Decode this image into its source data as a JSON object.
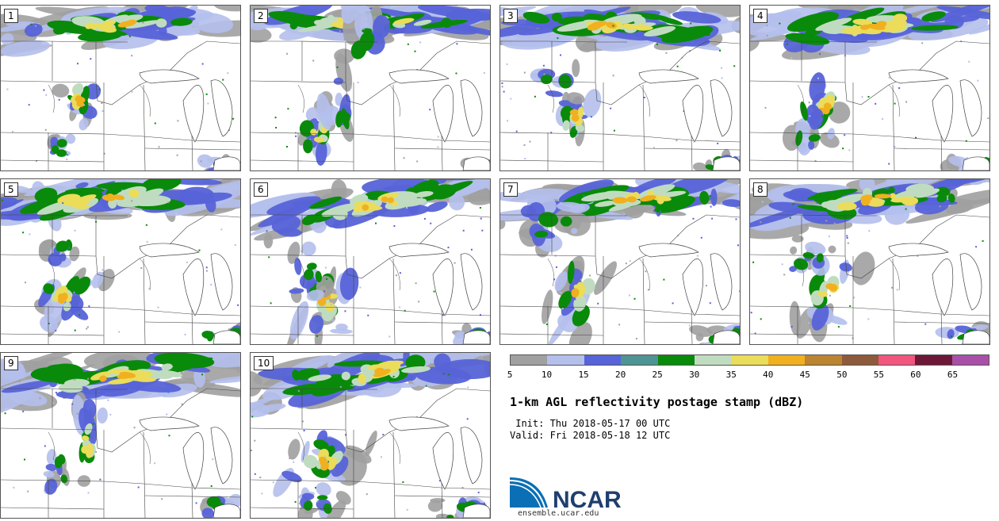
{
  "panels": [
    {
      "label": "1",
      "variant": 0
    },
    {
      "label": "2",
      "variant": 1
    },
    {
      "label": "3",
      "variant": 2
    },
    {
      "label": "4",
      "variant": 3
    },
    {
      "label": "5",
      "variant": 4
    },
    {
      "label": "6",
      "variant": 5
    },
    {
      "label": "7",
      "variant": 6
    },
    {
      "label": "8",
      "variant": 7
    },
    {
      "label": "9",
      "variant": 8
    },
    {
      "label": "10",
      "variant": 9
    }
  ],
  "colorbar": {
    "colors": [
      "#a0a0a0",
      "#b4bfec",
      "#5763d8",
      "#4e9494",
      "#0a8a0a",
      "#c0dcc0",
      "#ebdc5a",
      "#f0b020",
      "#bb8430",
      "#8e5a3c",
      "#f2557e",
      "#6e1838",
      "#a850a8"
    ],
    "ticks": [
      "5",
      "10",
      "15",
      "20",
      "25",
      "30",
      "35",
      "40",
      "45",
      "50",
      "55",
      "60",
      "65"
    ]
  },
  "title": "1-km AGL reflectivity postage stamp (dBZ)",
  "init_line": " Init: Thu 2018-05-17 00 UTC",
  "valid_line": "Valid: Fri 2018-05-18 12 UTC",
  "logo": {
    "text": "NCAR",
    "url": "ensemble.ucar.edu",
    "blue": "#0a6fb5"
  }
}
